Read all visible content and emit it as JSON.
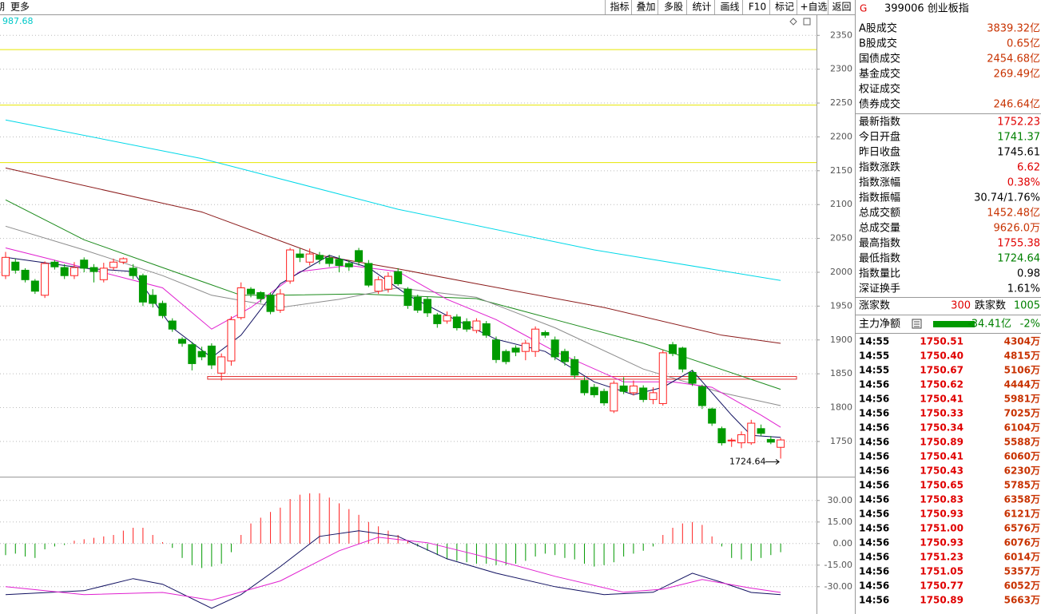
{
  "toolbar": {
    "left": [
      "期",
      "更多"
    ],
    "buttons": [
      "指标",
      "叠加",
      "多股",
      "统计",
      "画线",
      "F10",
      "标记",
      "+自选",
      "返回"
    ]
  },
  "chart": {
    "corner_value": "987.68",
    "ylim": [
      1698,
      2381
    ],
    "yticks": [
      1750,
      1800,
      1850,
      1900,
      1950,
      2000,
      2050,
      2100,
      2150,
      2200,
      2250,
      2300,
      2350
    ],
    "up_color": "#ff2020",
    "down_color": "#009a00",
    "hlines": [
      {
        "value": 2329,
        "color": "#e6e600"
      },
      {
        "value": 2247,
        "color": "#e6e600"
      },
      {
        "value": 2162,
        "color": "#e6e600"
      }
    ],
    "support_band": {
      "values": [
        1846,
        1842
      ],
      "from": 21,
      "color": "#e03030"
    },
    "low_label": "1724.64",
    "candles": [
      [
        1995,
        2030,
        1990,
        2022
      ],
      [
        2015,
        2020,
        1998,
        2003
      ],
      [
        2003,
        2006,
        1985,
        1989
      ],
      [
        1987,
        1990,
        1968,
        1972
      ],
      [
        1966,
        2016,
        1962,
        2013
      ],
      [
        2015,
        2018,
        2004,
        2008
      ],
      [
        2007,
        2012,
        1990,
        1995
      ],
      [
        1995,
        2015,
        1990,
        2007
      ],
      [
        2018,
        2022,
        2000,
        2006
      ],
      [
        2007,
        2012,
        1985,
        2001
      ],
      [
        1989,
        2014,
        1985,
        2006
      ],
      [
        2007,
        2020,
        2003,
        2015
      ],
      [
        2015,
        2022,
        2012,
        2020
      ],
      [
        2006,
        2012,
        1990,
        1995
      ],
      [
        1995,
        1998,
        1950,
        1956
      ],
      [
        1966,
        1975,
        1948,
        1954
      ],
      [
        1954,
        1958,
        1932,
        1936
      ],
      [
        1928,
        1932,
        1912,
        1916
      ],
      [
        1901,
        1904,
        1890,
        1895
      ],
      [
        1893,
        1897,
        1855,
        1865
      ],
      [
        1883,
        1890,
        1870,
        1875
      ],
      [
        1891,
        1895,
        1857,
        1863
      ],
      [
        1851,
        1880,
        1840,
        1875
      ],
      [
        1869,
        1935,
        1862,
        1930
      ],
      [
        1933,
        1985,
        1930,
        1977
      ],
      [
        1975,
        1978,
        1963,
        1968
      ],
      [
        1970,
        1972,
        1955,
        1961
      ],
      [
        1966,
        1970,
        1938,
        1942
      ],
      [
        1944,
        1975,
        1940,
        1968
      ],
      [
        1987,
        2036,
        1983,
        2033
      ],
      [
        2027,
        2035,
        2015,
        2022
      ],
      [
        2015,
        2035,
        2010,
        2027
      ],
      [
        2025,
        2030,
        2012,
        2019
      ],
      [
        2021,
        2026,
        2008,
        2013
      ],
      [
        2019,
        2025,
        2000,
        2010
      ],
      [
        2013,
        2018,
        2002,
        2008
      ],
      [
        2032,
        2036,
        2010,
        2016
      ],
      [
        2013,
        2018,
        1978,
        1981
      ],
      [
        1972,
        1994,
        1968,
        1989
      ],
      [
        1975,
        2000,
        1970,
        1994
      ],
      [
        2001,
        2006,
        1980,
        1983
      ],
      [
        1975,
        1978,
        1946,
        1951
      ],
      [
        1963,
        1967,
        1940,
        1944
      ],
      [
        1960,
        1964,
        1934,
        1940
      ],
      [
        1937,
        1940,
        1918,
        1924
      ],
      [
        1928,
        1942,
        1924,
        1936
      ],
      [
        1934,
        1938,
        1914,
        1918
      ],
      [
        1927,
        1932,
        1912,
        1916
      ],
      [
        1914,
        1932,
        1910,
        1928
      ],
      [
        1924,
        1928,
        1903,
        1907
      ],
      [
        1900,
        1905,
        1866,
        1871
      ],
      [
        1883,
        1886,
        1864,
        1868
      ],
      [
        1888,
        1892,
        1876,
        1882
      ],
      [
        1883,
        1900,
        1870,
        1895
      ],
      [
        1883,
        1920,
        1875,
        1916
      ],
      [
        1911,
        1914,
        1903,
        1907
      ],
      [
        1900,
        1905,
        1870,
        1875
      ],
      [
        1883,
        1887,
        1862,
        1868
      ],
      [
        1871,
        1876,
        1843,
        1848
      ],
      [
        1840,
        1845,
        1818,
        1822
      ],
      [
        1830,
        1835,
        1815,
        1819
      ],
      [
        1824,
        1828,
        1803,
        1807
      ],
      [
        1795,
        1840,
        1792,
        1836
      ],
      [
        1832,
        1845,
        1820,
        1824
      ],
      [
        1822,
        1840,
        1818,
        1832
      ],
      [
        1829,
        1833,
        1808,
        1812
      ],
      [
        1812,
        1830,
        1805,
        1822
      ],
      [
        1806,
        1885,
        1803,
        1881
      ],
      [
        1893,
        1897,
        1876,
        1880
      ],
      [
        1888,
        1890,
        1852,
        1857
      ],
      [
        1852,
        1856,
        1832,
        1836
      ],
      [
        1831,
        1834,
        1798,
        1803
      ],
      [
        1798,
        1800,
        1773,
        1777
      ],
      [
        1769,
        1772,
        1744,
        1748
      ],
      [
        1751,
        1755,
        1742,
        1752
      ],
      [
        1748,
        1765,
        1740,
        1760
      ],
      [
        1748,
        1782,
        1745,
        1777
      ],
      [
        1769,
        1775,
        1758,
        1762
      ],
      [
        1753,
        1758,
        1746,
        1749
      ],
      [
        1741.37,
        1755.38,
        1724.64,
        1752.23
      ]
    ],
    "ma_lines": [
      {
        "color": "#00d8e8",
        "x": [
          0,
          20,
          40,
          60,
          79
        ],
        "values": [
          2225,
          2168,
          2093,
          2033,
          1988
        ]
      },
      {
        "color": "#8b1a1a",
        "x": [
          0,
          20,
          32,
          40,
          48,
          61,
          73,
          79
        ],
        "values": [
          2154,
          2089,
          2025,
          2005,
          1983,
          1948,
          1907,
          1895
        ]
      },
      {
        "color": "#1a8a1a",
        "x": [
          0,
          8,
          16,
          24,
          28,
          36,
          48,
          56,
          65,
          70,
          79
        ],
        "values": [
          2107,
          2048,
          2007,
          1966,
          1966,
          1968,
          1961,
          1930,
          1895,
          1871,
          1827
        ]
      },
      {
        "color": "#8c8c8c",
        "x": [
          0,
          8,
          16,
          21,
          28,
          34,
          40,
          48,
          56,
          65,
          73,
          79
        ],
        "values": [
          2068,
          2033,
          1995,
          1966,
          1948,
          1960,
          1977,
          1963,
          1918,
          1857,
          1822,
          1803
        ]
      },
      {
        "color": "#e020d0",
        "x": [
          0,
          8,
          16,
          21,
          25,
          30,
          35,
          40,
          45,
          50,
          56,
          63,
          68,
          72,
          77,
          79
        ],
        "values": [
          2036,
          2007,
          1977,
          1916,
          1948,
          2001,
          2010,
          2001,
          1960,
          1930,
          1883,
          1838,
          1838,
          1830,
          1789,
          1771
        ]
      },
      {
        "color": "#101060",
        "x": [
          0,
          8,
          13,
          17,
          21,
          24,
          28,
          33,
          37,
          41,
          45,
          50,
          55,
          60,
          64,
          67,
          70,
          74,
          76,
          79
        ],
        "values": [
          2022,
          2006,
          2001,
          1918,
          1874,
          1907,
          1983,
          2025,
          2007,
          1966,
          1936,
          1901,
          1883,
          1838,
          1819,
          1830,
          1855,
          1789,
          1759,
          1756
        ]
      }
    ]
  },
  "macd": {
    "ylim": [
      -49,
      46
    ],
    "yticks": [
      {
        "value": 30,
        "label": "30.00"
      },
      {
        "value": 15,
        "label": "15.00"
      },
      {
        "value": 0,
        "label": "0.00"
      },
      {
        "value": -15,
        "label": "-15.00"
      },
      {
        "value": -30,
        "label": "-30.00"
      }
    ],
    "hist": [
      -8,
      -7,
      -9,
      -10,
      -4,
      -2,
      -1,
      2,
      3,
      4,
      5,
      6,
      9,
      11,
      11,
      6,
      1,
      -3,
      -10,
      -15,
      -17,
      -16,
      -14,
      -6,
      6,
      14,
      18,
      22,
      25,
      31,
      34,
      35,
      35,
      32,
      28,
      24,
      20,
      15,
      12,
      9,
      6,
      2,
      -2,
      -5,
      -8,
      -11,
      -12,
      -13,
      -14,
      -14,
      -15,
      -15,
      -14,
      -12,
      -9,
      -7,
      -8,
      -10,
      -11,
      -14,
      -16,
      -15,
      -13,
      -9,
      -7,
      -5,
      -2,
      6,
      11,
      14,
      15,
      13,
      5,
      -2,
      -10,
      -11,
      -12,
      -10,
      -8,
      -6
    ],
    "lines": [
      {
        "color": "#101060",
        "x": [
          0,
          8,
          13,
          16,
          21,
          24,
          28,
          32,
          36,
          40,
          45,
          50,
          56,
          61,
          66,
          70,
          73,
          76,
          79
        ],
        "values": [
          -35.5,
          -32.8,
          -24.4,
          -28.3,
          -45,
          -35.5,
          -16,
          5,
          8.9,
          5,
          -10.6,
          -20.6,
          -30,
          -35.5,
          -33.9,
          -20.6,
          -27,
          -34,
          -35.5
        ]
      },
      {
        "color": "#e020d0",
        "x": [
          0,
          8,
          16,
          21,
          28,
          34,
          38,
          43,
          48,
          56,
          63,
          67,
          71,
          76,
          79
        ],
        "values": [
          -30,
          -35.5,
          -34,
          -39.4,
          -26,
          -5,
          4.4,
          0.6,
          -7.8,
          -22.8,
          -33.9,
          -31.7,
          -25,
          -31,
          -34
        ]
      }
    ]
  },
  "quote": {
    "badge": "G",
    "title": "399006 创业板指",
    "rows": [
      {
        "label": "A股成交",
        "value": "3839.32亿",
        "color": "#c83200"
      },
      {
        "label": "B股成交",
        "value": "0.65亿",
        "color": "#c83200"
      },
      {
        "label": "国债成交",
        "value": "2454.68亿",
        "color": "#c83200"
      },
      {
        "label": "基金成交",
        "value": "269.49亿",
        "color": "#c83200"
      },
      {
        "label": "权证成交"
      },
      {
        "label": "债券成交",
        "value": "246.64亿",
        "color": "#c83200"
      },
      {
        "label": "最新指数",
        "value": "1752.23",
        "color": "#e00000"
      },
      {
        "label": "今日开盘",
        "value": "1741.37",
        "color": "#008000"
      },
      {
        "label": "昨日收盘",
        "value": "1745.61",
        "color": "#000000"
      },
      {
        "label": "指数涨跌",
        "value": "6.62",
        "color": "#e00000"
      },
      {
        "label": "指数涨幅",
        "value": "0.38%",
        "color": "#e00000"
      },
      {
        "label": "指数振幅",
        "value": "30.74/1.76%",
        "color": "#000000"
      },
      {
        "label": "总成交额",
        "value": "1452.48亿",
        "color": "#c83200"
      },
      {
        "label": "总成交量",
        "value": "9626.0万",
        "color": "#c83200"
      },
      {
        "label": "最高指数",
        "value": "1755.38",
        "color": "#e00000"
      },
      {
        "label": "最低指数",
        "value": "1724.64",
        "color": "#008000"
      },
      {
        "label": "指数量比",
        "value": "0.98",
        "color": "#000000"
      },
      {
        "label": "深证换手",
        "value": "1.61%",
        "color": "#000000"
      }
    ],
    "breadth": {
      "up_label": "涨家数",
      "up": "300",
      "down_label": "跌家数",
      "down": "1005"
    },
    "flow": {
      "label": "主力净额",
      "value": "-34.41亿",
      "pct": "-2%"
    },
    "ticks": [
      [
        "14:55",
        "1750.51",
        "4304万"
      ],
      [
        "14:55",
        "1750.40",
        "4815万"
      ],
      [
        "14:55",
        "1750.67",
        "5106万"
      ],
      [
        "14:56",
        "1750.62",
        "4444万"
      ],
      [
        "14:56",
        "1750.41",
        "5981万"
      ],
      [
        "14:56",
        "1750.33",
        "7025万"
      ],
      [
        "14:56",
        "1750.34",
        "6104万"
      ],
      [
        "14:56",
        "1750.89",
        "5588万"
      ],
      [
        "14:56",
        "1750.41",
        "6060万"
      ],
      [
        "14:56",
        "1750.43",
        "6230万"
      ],
      [
        "14:56",
        "1750.65",
        "5785万"
      ],
      [
        "14:56",
        "1750.83",
        "6358万"
      ],
      [
        "14:56",
        "1750.93",
        "6121万"
      ],
      [
        "14:56",
        "1751.00",
        "6576万"
      ],
      [
        "14:56",
        "1750.93",
        "6076万"
      ],
      [
        "14:56",
        "1751.23",
        "6014万"
      ],
      [
        "14:56",
        "1751.05",
        "5357万"
      ],
      [
        "14:56",
        "1750.77",
        "6052万"
      ],
      [
        "14:56",
        "1750.89",
        "5663万"
      ]
    ]
  }
}
